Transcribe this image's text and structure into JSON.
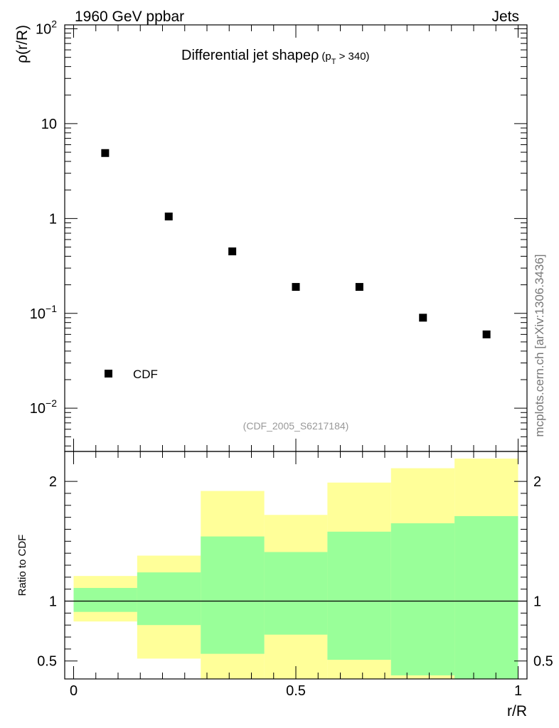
{
  "header": {
    "left": "1960 GeV ppbar",
    "right": "Jets"
  },
  "side_credit": "mcplots.cern.ch [arXiv:1306.3436]",
  "chart_data": [
    {
      "type": "scatter",
      "title_main": "Differential jet shapeρ",
      "title_sub_p": "(p",
      "title_sub_T": "T",
      "title_sub_rest": " > 340)",
      "ylabel": "ρ(r/R)",
      "yscale": "log",
      "ylim": [
        0.0035,
        110
      ],
      "xlim": [
        -0.02,
        1.02
      ],
      "yticks": [
        {
          "base": "10",
          "exp": "2",
          "value": 100
        },
        {
          "base": "10",
          "exp": "",
          "value": 10
        },
        {
          "base": "1",
          "exp": "",
          "value": 1
        },
        {
          "base": "10",
          "exp": "−1",
          "value": 0.1
        },
        {
          "base": "10",
          "exp": "−2",
          "value": 0.01
        }
      ],
      "legend": {
        "label": "CDF",
        "position": "bottom-left"
      },
      "watermark": "(CDF_2005_S6217184)",
      "series": [
        {
          "name": "CDF",
          "x": [
            0.071,
            0.214,
            0.357,
            0.5,
            0.643,
            0.786,
            0.929
          ],
          "y": [
            4.9,
            1.05,
            0.45,
            0.19,
            0.19,
            0.09,
            0.06
          ]
        }
      ]
    },
    {
      "type": "area",
      "ylabel": "Ratio to CDF",
      "xlabel": "r/R",
      "ylim": [
        0.35,
        2.25
      ],
      "xlim": [
        -0.02,
        1.02
      ],
      "reference_line": 1,
      "yticks": [
        {
          "label": "2",
          "value": 2
        },
        {
          "label": "1",
          "value": 1
        },
        {
          "label": "0.5",
          "value": 0.5
        }
      ],
      "xticks": [
        {
          "label": "0",
          "value": 0
        },
        {
          "label": "0.5",
          "value": 0.5
        },
        {
          "label": "1",
          "value": 1
        }
      ],
      "bins": [
        0,
        0.143,
        0.286,
        0.429,
        0.571,
        0.714,
        0.857,
        1.0
      ],
      "bands": [
        {
          "name": "outer",
          "color": "#ffff99",
          "low": [
            0.83,
            0.52,
            0.35,
            0.35,
            0.35,
            0.35,
            0.35
          ],
          "high": [
            1.21,
            1.38,
            1.92,
            1.72,
            1.99,
            2.11,
            2.19
          ]
        },
        {
          "name": "inner",
          "color": "#99ff99",
          "low": [
            0.91,
            0.8,
            0.56,
            0.72,
            0.51,
            0.38,
            0.35
          ],
          "high": [
            1.11,
            1.24,
            1.54,
            1.41,
            1.58,
            1.65,
            1.71
          ]
        }
      ]
    }
  ]
}
